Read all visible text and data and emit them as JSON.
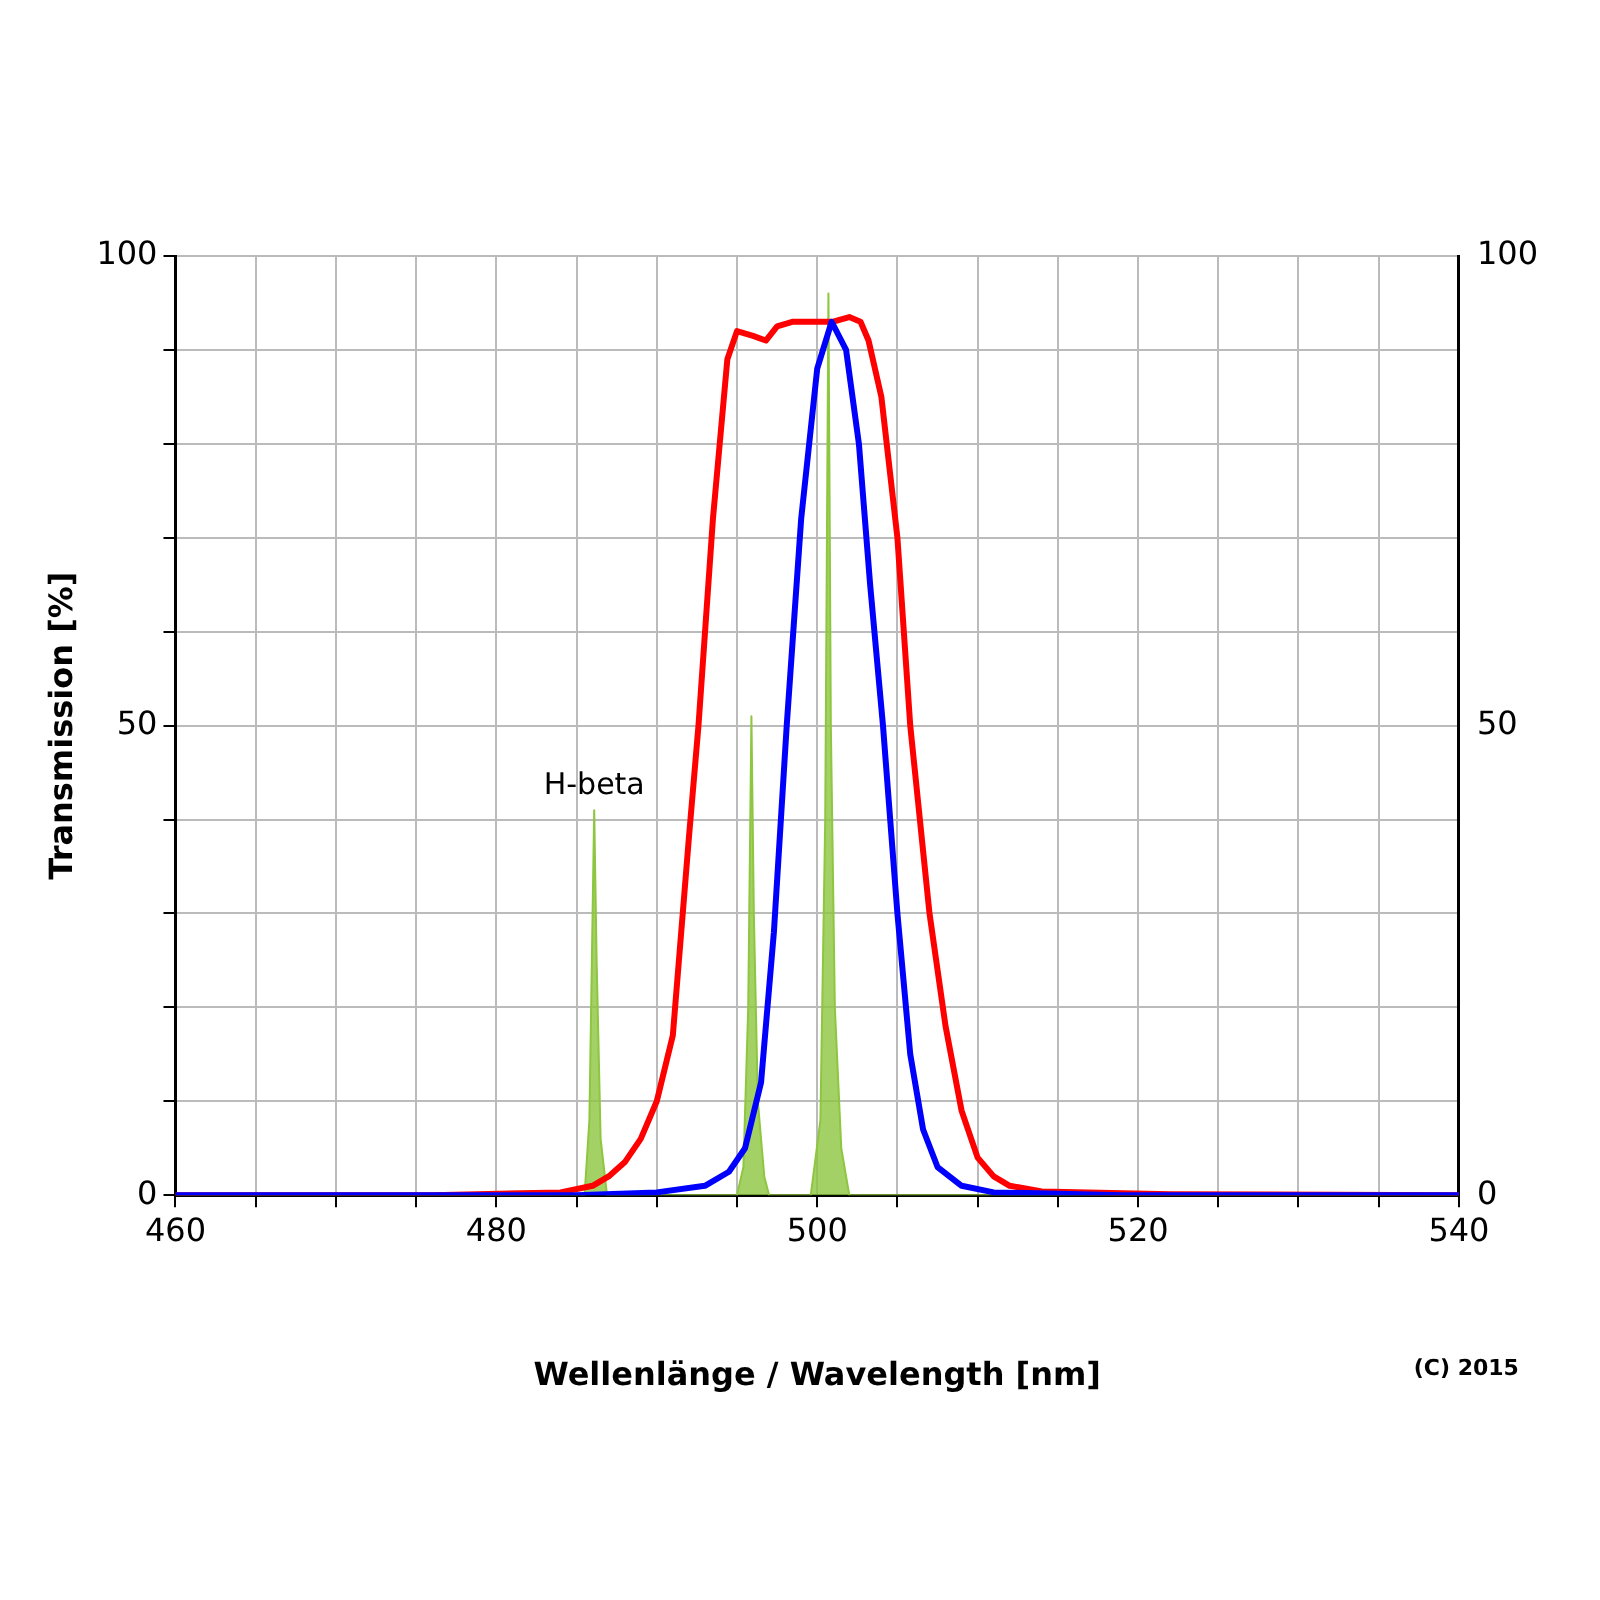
{
  "chart_data": {
    "type": "line",
    "xlabel": "Wellenlänge / Wavelength [nm]",
    "ylabel": "Transmission [%]",
    "xlim": [
      460,
      540
    ],
    "xticks": [
      460,
      {
        "value": 465,
        "label": null
      },
      {
        "value": 470,
        "label": null
      },
      {
        "value": 475,
        "label": null
      },
      480,
      {
        "value": 485,
        "label": null
      },
      {
        "value": 490,
        "label": null
      },
      {
        "value": 495,
        "label": null
      },
      500,
      {
        "value": 505,
        "label": null
      },
      {
        "value": 510,
        "label": null
      },
      {
        "value": 515,
        "label": null
      },
      520,
      {
        "value": 525,
        "label": null
      },
      {
        "value": 530,
        "label": null
      },
      {
        "value": 535,
        "label": null
      },
      540
    ],
    "ylim": [
      0,
      100
    ],
    "yticks": [
      0,
      {
        "value": 10,
        "label": null
      },
      {
        "value": 20,
        "label": null
      },
      {
        "value": 30,
        "label": null
      },
      {
        "value": 40,
        "label": null
      },
      50,
      {
        "value": 60,
        "label": null
      },
      {
        "value": 70,
        "label": null
      },
      {
        "value": 80,
        "label": null
      },
      {
        "value": 90,
        "label": null
      },
      100
    ],
    "y2lim": [
      0,
      100
    ],
    "y2ticks": [
      0,
      50,
      100
    ],
    "grid": true,
    "legend": false,
    "marker": "none",
    "line_style": "solid",
    "series": [
      {
        "type": "area",
        "color": "#8dc63f",
        "x": [
          460,
          485.5,
          485.8,
          486.0,
          486.1,
          486.25,
          486.5,
          486.9,
          495,
          495.4,
          495.7,
          495.9,
          496.05,
          496.3,
          496.7,
          497,
          499.6,
          500.2,
          500.5,
          500.7,
          500.85,
          501.1,
          501.5,
          502,
          540
        ],
        "values": [
          0,
          0,
          8,
          30,
          41,
          25,
          6,
          0,
          0,
          3,
          20,
          51,
          30,
          10,
          2,
          0,
          0,
          8,
          40,
          96,
          50,
          20,
          5,
          0,
          0
        ]
      },
      {
        "type": "line",
        "color": "#ff0000",
        "x": [
          460,
          476,
          484,
          486,
          487,
          488,
          489,
          490,
          491,
          492,
          492.6,
          493.5,
          494.4,
          495,
          496,
          496.8,
          497.5,
          498.5,
          500,
          501,
          502,
          502.7,
          503.2,
          504,
          505,
          505.8,
          507,
          508,
          509,
          510,
          511,
          512,
          514,
          522,
          540
        ],
        "values": [
          0,
          0,
          0.3,
          1,
          2,
          3.5,
          6,
          10,
          17,
          38,
          50,
          72,
          89,
          92,
          91.5,
          91,
          92.5,
          93,
          93,
          93,
          93.5,
          93,
          91,
          85,
          70,
          50,
          30,
          18,
          9,
          4,
          2,
          1,
          0.4,
          0.1,
          0
        ]
      },
      {
        "type": "line",
        "color": "#0000ff",
        "x": [
          460,
          485,
          490,
          493,
          494.5,
          495.5,
          496.5,
          497.3,
          498.1,
          499,
          500,
          500.9,
          501.8,
          502.6,
          503.3,
          504.1,
          505,
          505.8,
          506.6,
          507.5,
          509,
          511,
          519,
          540
        ],
        "values": [
          0,
          0,
          0.3,
          1,
          2.5,
          5,
          12,
          28,
          50,
          72,
          88,
          93,
          90,
          80,
          65,
          50,
          30,
          15,
          7,
          3,
          1,
          0.3,
          0,
          0
        ]
      }
    ],
    "annotations": [
      {
        "text": "H-beta",
        "x": 486.1,
        "y": 41
      },
      "(C) 2015"
    ]
  }
}
